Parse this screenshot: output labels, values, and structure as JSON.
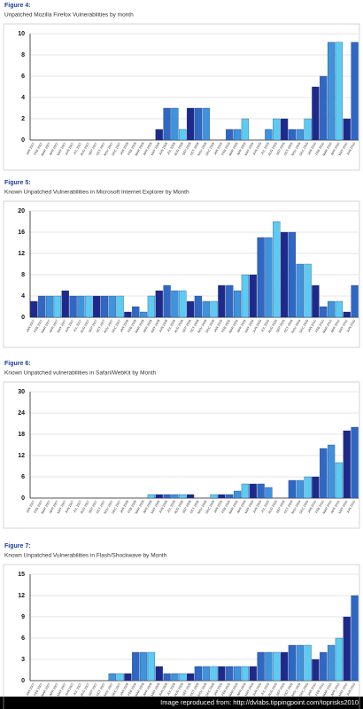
{
  "chart_data": [
    {
      "figure": "Figure 4:",
      "title": "Unpatched Mozilla Firefox Vulnerabilities by month",
      "type": "bar",
      "categories": [
        "JAN 2007",
        "FEB 2007",
        "MAR 2007",
        "APR 2007",
        "MAY 2007",
        "JUN 2007",
        "JUL 2007",
        "AUG 2007",
        "SEP 2007",
        "OCT 2007",
        "NOV 2007",
        "DEC 2007",
        "JAN 2008",
        "FEB 2008",
        "MAR 2008",
        "APR 2008",
        "MAY 2008",
        "JUN 2008",
        "JUL 2008",
        "AUG 2008",
        "SEP 2008",
        "OCT 2008",
        "NOV 2008",
        "DEC 2008",
        "JAN 2009",
        "FEB 2009",
        "MAR 2009",
        "APR 2009",
        "MAY 2009",
        "JUN 2009",
        "JUL 2009",
        "AUG 2009",
        "SEP 2009",
        "OCT 2009",
        "NOV 2009",
        "DEC 2009",
        "JAN 2010",
        "FEB 2010",
        "MAR 2010",
        "APR 2010",
        "MAY 2010",
        "JUN 2010"
      ],
      "values": [
        0,
        0,
        0,
        0,
        0,
        0,
        0,
        0,
        0,
        0,
        0,
        0,
        0,
        0,
        0,
        0,
        1,
        3,
        3,
        1,
        3,
        3,
        3,
        0,
        0,
        1,
        1,
        2,
        0,
        0,
        1,
        2,
        2,
        1,
        1,
        2,
        5,
        6,
        9.2,
        9.2,
        2,
        9.2
      ],
      "colors": [
        "#1d2a8c",
        "#2f67c4",
        "#3f93dc",
        "#5ccbf2"
      ],
      "ylim": [
        0,
        10
      ],
      "yticks": [
        0,
        2,
        4,
        6,
        8,
        10
      ]
    },
    {
      "figure": "Figure 5:",
      "title": "Known Unpatched Vulnerabilities in Microsoft Internet Explorer by Month",
      "type": "bar",
      "categories": [
        "JAN 2007",
        "FEB 2007",
        "MAR 2007",
        "APR 2007",
        "MAY 2007",
        "JUN 2007",
        "JUL 2007",
        "AUG 2007",
        "SEP 2007",
        "OCT 2007",
        "NOV 2007",
        "DEC 2007",
        "JAN 2008",
        "FEB 2008",
        "MAR 2008",
        "APR 2008",
        "MAY 2008",
        "JUN 2008",
        "JUL 2008",
        "AUG 2008",
        "SEP 2008",
        "OCT 2008",
        "NOV 2008",
        "DEC 2008",
        "JAN 2009",
        "FEB 2009",
        "MAR 2009",
        "APR 2009",
        "MAY 2009",
        "JUN 2009",
        "JUL 2009",
        "AUG 2009",
        "SEP 2009",
        "OCT 2009",
        "NOV 2009",
        "DEC 2009",
        "JAN 2010",
        "FEB 2010",
        "MAR 2010",
        "APR 2010",
        "MAY 2010",
        "JUN 2010"
      ],
      "values": [
        3,
        4,
        4,
        4,
        5,
        4,
        4,
        4,
        4,
        4,
        4,
        4,
        1,
        2,
        1,
        4,
        5,
        6,
        5,
        5,
        3,
        4,
        3,
        3,
        6,
        6,
        5,
        8,
        8,
        15,
        15,
        18,
        16,
        16,
        10,
        10,
        6,
        2,
        3,
        3,
        1,
        6
      ],
      "colors": [
        "#1d2a8c",
        "#2f67c4",
        "#3f93dc",
        "#5ccbf2"
      ],
      "ylim": [
        0,
        20
      ],
      "yticks": [
        0,
        4,
        8,
        12,
        16,
        20
      ]
    },
    {
      "figure": "Figure 6:",
      "title": "Known Unpatched vulnerabilities in Safari/WebKit by Month",
      "type": "bar",
      "categories": [
        "JAN 2007",
        "FEB 2007",
        "MAR 2007",
        "APR 2007",
        "MAY 2007",
        "JUN 2007",
        "JUL 2007",
        "AUG 2007",
        "SEP 2007",
        "OCT 2007",
        "NOV 2007",
        "DEC 2007",
        "JAN 2008",
        "FEB 2008",
        "MAR 2008",
        "APR 2008",
        "MAY 2008",
        "JUN 2008",
        "JUL 2008",
        "AUG 2008",
        "SEP 2008",
        "OCT 2008",
        "NOV 2008",
        "DEC 2008",
        "JAN 2009",
        "FEB 2009",
        "MAR 2009",
        "APR 2009",
        "MAY 2009",
        "JUN 2009",
        "JUL 2009",
        "AUG 2009",
        "SEP 2009",
        "OCT 2009",
        "NOV 2009",
        "DEC 2009",
        "JAN 2010",
        "FEB 2010",
        "MAR 2010",
        "APR 2010",
        "MAY 2010",
        "JUN 2010"
      ],
      "values": [
        0,
        0,
        0,
        0,
        0,
        0,
        0,
        0,
        0,
        0,
        0,
        0,
        0,
        0,
        0,
        1,
        1,
        1,
        1,
        1,
        1,
        0,
        0,
        1,
        1,
        1,
        2,
        4,
        4,
        4,
        3,
        0,
        0,
        5,
        5,
        6,
        6,
        14,
        15,
        10,
        19,
        20
      ],
      "colors": [
        "#1d2a8c",
        "#2f67c4",
        "#3f93dc",
        "#5ccbf2"
      ],
      "ylim": [
        0,
        30
      ],
      "yticks": [
        0,
        6,
        12,
        18,
        24,
        30
      ]
    },
    {
      "figure": "Figure 7:",
      "title": "Known Unpatched Vulnerabilities in Flash/Shockwave by Month",
      "type": "bar",
      "categories": [
        "JAN 2007",
        "FEB 2007",
        "MAR 2007",
        "APR 2007",
        "MAY 2007",
        "JUN 2007",
        "JUL 2007",
        "AUG 2007",
        "SEP 2007",
        "OCT 2007",
        "NOV 2007",
        "DEC 2007",
        "JAN 2008",
        "FEB 2008",
        "MAR 2008",
        "APR 2008",
        "MAY 2008",
        "JUN 2008",
        "JUL 2008",
        "AUG 2008",
        "SEP 2008",
        "OCT 2008",
        "NOV 2008",
        "DEC 2008",
        "JAN 2009",
        "FEB 2009",
        "MAR 2009",
        "APR 2009",
        "MAY 2009",
        "JUN 2009",
        "JUL 2009",
        "AUG 2009",
        "SEP 2009",
        "OCT 2009",
        "NOV 2009",
        "DEC 2009",
        "JAN 2010",
        "FEB 2010",
        "MAR 2010",
        "APR 2010",
        "MAY 2010",
        "JUN 2010"
      ],
      "values": [
        0,
        0,
        0,
        0,
        0,
        0,
        0,
        0,
        0,
        0,
        1,
        1,
        1,
        4,
        4,
        4,
        2,
        1,
        1,
        1,
        1,
        2,
        2,
        2,
        2,
        2,
        2,
        2,
        2,
        4,
        4,
        4,
        4,
        5,
        5,
        5,
        3,
        4,
        5,
        6,
        9,
        12
      ],
      "colors": [
        "#1d2a8c",
        "#2f67c4",
        "#3f93dc",
        "#5ccbf2"
      ],
      "ylim": [
        0,
        15
      ],
      "yticks": [
        0,
        3,
        6,
        9,
        12,
        15
      ]
    }
  ],
  "footer": "Image reproduced from: http://dvlabs.tippingpoint.com/toprisks2010"
}
